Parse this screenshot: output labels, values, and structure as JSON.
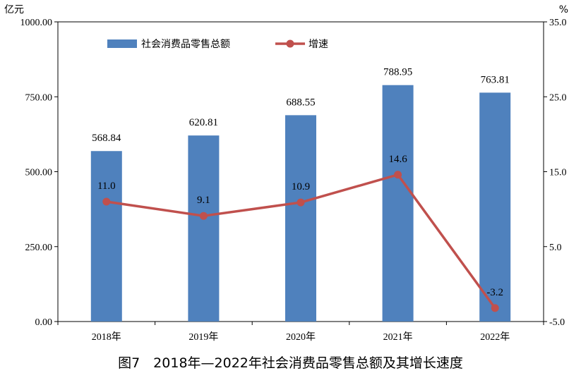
{
  "caption": "图7　2018年—2022年社会消费品零售总额及其增长速度",
  "colors": {
    "bar": "#4F81BD",
    "line": "#C0504D"
  },
  "chart_data": {
    "type": "bar+line",
    "categories": [
      "2018年",
      "2019年",
      "2020年",
      "2021年",
      "2022年"
    ],
    "series": [
      {
        "name": "社会消费品零售总额",
        "type": "bar",
        "axis": "left",
        "values": [
          568.84,
          620.81,
          688.55,
          788.95,
          763.81
        ],
        "labels": [
          "568.84",
          "620.81",
          "688.55",
          "788.95",
          "763.81"
        ]
      },
      {
        "name": "增速",
        "type": "line",
        "axis": "right",
        "values": [
          11.0,
          9.1,
          10.9,
          14.6,
          -3.2
        ],
        "labels": [
          "11.0",
          "9.1",
          "10.9",
          "14.6",
          "-3.2"
        ]
      }
    ],
    "y_left": {
      "unit": "亿元",
      "ylim": [
        0,
        1000
      ],
      "ticks": [
        0,
        250,
        500,
        750,
        1000
      ],
      "tick_labels": [
        "0.00",
        "250.00",
        "500.00",
        "750.00",
        "1000.00"
      ]
    },
    "y_right": {
      "unit": "%",
      "ylim": [
        -5,
        35
      ],
      "ticks": [
        -5,
        5,
        15,
        25,
        35
      ],
      "tick_labels": [
        "-5.0",
        "5.0",
        "15.0",
        "25.0",
        "35.0"
      ]
    },
    "legend_placement": "top-left",
    "grid": false
  }
}
